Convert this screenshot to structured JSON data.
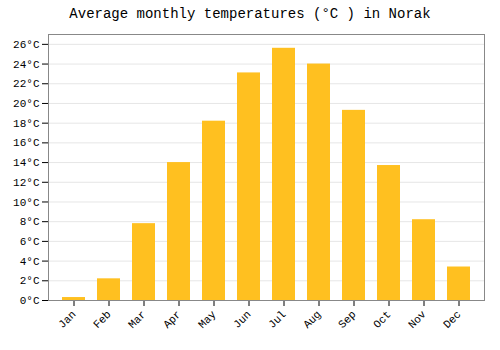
{
  "chart_data": {
    "type": "bar",
    "title": "Average monthly temperatures (°C ) in Norak",
    "categories": [
      "Jan",
      "Feb",
      "Mar",
      "Apr",
      "May",
      "Jun",
      "Jul",
      "Aug",
      "Sep",
      "Oct",
      "Nov",
      "Dec"
    ],
    "values": [
      0.3,
      2.2,
      7.8,
      14.0,
      18.2,
      23.1,
      25.6,
      24.0,
      19.3,
      13.7,
      8.2,
      3.4
    ],
    "color": "#FFC020",
    "ylim": [
      0,
      27
    ],
    "yticks": [
      {
        "value": 0,
        "label": "0°C"
      },
      {
        "value": 2,
        "label": "2°C"
      },
      {
        "value": 4,
        "label": "4°C"
      },
      {
        "value": 6,
        "label": "6°C"
      },
      {
        "value": 8,
        "label": "8°C"
      },
      {
        "value": 10,
        "label": "10°C"
      },
      {
        "value": 12,
        "label": "12°C"
      },
      {
        "value": 14,
        "label": "14°C"
      },
      {
        "value": 16,
        "label": "16°C"
      },
      {
        "value": 18,
        "label": "18°C"
      },
      {
        "value": 20,
        "label": "20°C"
      },
      {
        "value": 22,
        "label": "22°C"
      },
      {
        "value": 24,
        "label": "24°C"
      },
      {
        "value": 26,
        "label": "26°C"
      }
    ],
    "grid": true
  }
}
